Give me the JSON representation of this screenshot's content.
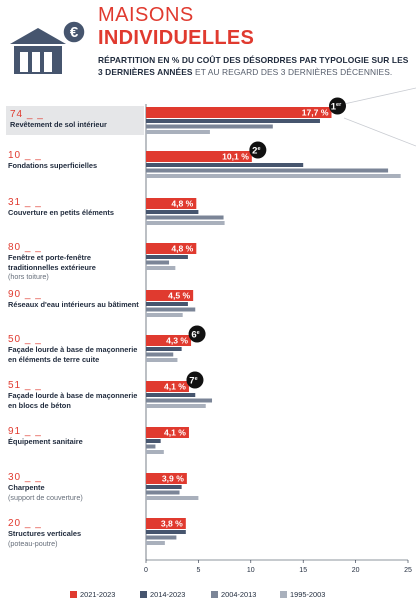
{
  "header": {
    "title_line1": "MAISONS",
    "title_line2": "INDIVIDUELLES",
    "subtitle_bold": "RÉPARTITION EN % DU COÛT DES DÉSORDRES PAR TYPOLOGIE SUR LES 3 DERNIÈRES ANNÉES",
    "subtitle_light": " ET AU REGARD DES 3 DERNIÈRES DÉCENNIES.",
    "icon": "house-euro-icon"
  },
  "colors": {
    "s2021": "#e03a2f",
    "s2014": "#46556e",
    "s2004": "#7b8597",
    "s1995": "#a9b0bc",
    "red": "#e03a2f",
    "dark": "#1f2a3c",
    "highlight": "#e5e6e8"
  },
  "categories": [
    {
      "code": "74 _ _",
      "name": "Revêtement de sol intérieur",
      "note": "",
      "badge": "1er"
    },
    {
      "code": "10 _ _",
      "name": "Fondations superficielles",
      "note": "",
      "badge": "2e"
    },
    {
      "code": "31 _ _",
      "name": "Couverture en petits éléments",
      "note": "",
      "badge": ""
    },
    {
      "code": "80 _ _",
      "name": "Fenêtre et porte-fenêtre traditionnelles extérieure",
      "note": "(hors toiture)",
      "badge": ""
    },
    {
      "code": "90 _ _",
      "name": "Réseaux d'eau intérieurs au bâtiment",
      "note": "",
      "badge": ""
    },
    {
      "code": "50 _ _",
      "name": "Façade lourde à base de maçonnerie en éléments de terre cuite",
      "note": "",
      "badge": "6e"
    },
    {
      "code": "51 _ _",
      "name": "Façade lourde à base de maçonnerie en blocs de béton",
      "note": "",
      "badge": "7e"
    },
    {
      "code": "91 _ _",
      "name": "Équipement sanitaire",
      "note": "",
      "badge": ""
    },
    {
      "code": "30 _ _",
      "name": "Charpente",
      "note": "(support de couverture)",
      "badge": ""
    },
    {
      "code": "20 _ _",
      "name": "Structures verticales",
      "note": "(poteau-poutre)",
      "badge": ""
    }
  ],
  "chart_data": {
    "type": "bar",
    "orientation": "horizontal",
    "categories": [
      "74 _ _",
      "10 _ _",
      "31 _ _",
      "80 _ _",
      "90 _ _",
      "50 _ _",
      "51 _ _",
      "91 _ _",
      "30 _ _",
      "20 _ _"
    ],
    "series": [
      {
        "name": "2021-2023",
        "values": [
          17.7,
          10.1,
          4.8,
          4.8,
          4.5,
          4.3,
          4.1,
          4.1,
          3.9,
          3.8
        ],
        "labels": [
          "17,7 %",
          "10,1 %",
          "4,8 %",
          "4,8 %",
          "4,5 %",
          "4,3 %",
          "4,1 %",
          "4,1 %",
          "3,9 %",
          "3,8 %"
        ]
      },
      {
        "name": "2014-2023",
        "values": [
          16.6,
          15.0,
          5.0,
          4.0,
          4.0,
          3.4,
          4.7,
          1.4,
          3.4,
          3.8
        ]
      },
      {
        "name": "2004-2013",
        "values": [
          12.1,
          23.1,
          7.4,
          2.2,
          4.7,
          2.6,
          6.3,
          0.9,
          3.2,
          2.9
        ]
      },
      {
        "name": "1995-2003",
        "values": [
          6.1,
          24.3,
          7.5,
          2.8,
          3.5,
          3.0,
          5.7,
          1.7,
          5.0,
          1.8
        ]
      }
    ],
    "xlim": [
      0,
      25
    ],
    "xticks": [
      "0",
      "5",
      "10",
      "15",
      "20",
      "25"
    ],
    "grid": false,
    "legend_position": "bottom"
  }
}
